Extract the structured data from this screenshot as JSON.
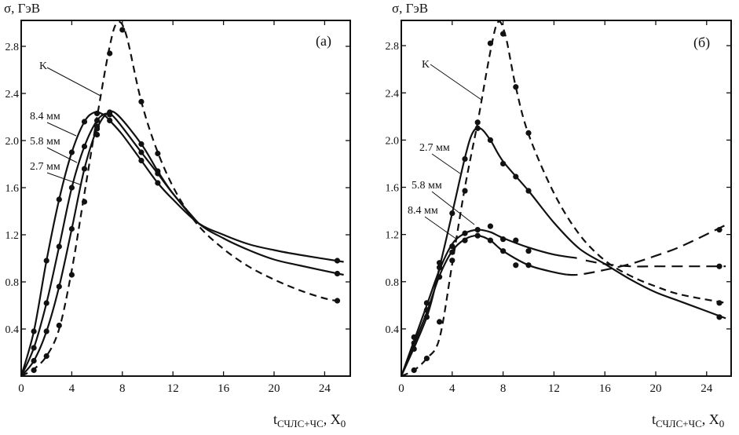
{
  "chart_data": [
    {
      "type": "line",
      "panel_label": "(а)",
      "ylabel": "σ, ГэВ",
      "xlabel": {
        "main": "t",
        "sub": "СЧЛС+ЧС",
        "rest": ", X",
        "rest_sub": "0"
      },
      "xlim": [
        0,
        26
      ],
      "ylim": [
        0,
        3.02
      ],
      "xticks": [
        0,
        4,
        8,
        12,
        16,
        20,
        24
      ],
      "xtick_labels": [
        "0",
        "4",
        "8",
        "12",
        "16",
        "20",
        "24"
      ],
      "yticks": [
        0.4,
        0.8,
        1.2,
        1.6,
        2.0,
        2.4,
        2.8
      ],
      "ytick_labels": [
        "0.4",
        "0.8",
        "1.2",
        "1.6",
        "2.0",
        "2.4",
        "2.8"
      ],
      "series": [
        {
          "name": "K",
          "style": "dashed",
          "points": [
            [
              1,
              0.05
            ],
            [
              2,
              0.17
            ],
            [
              3,
              0.43
            ],
            [
              4,
              0.86
            ],
            [
              5,
              1.48
            ],
            [
              6,
              2.05
            ],
            [
              6,
              2.12
            ],
            [
              7,
              2.74
            ],
            [
              8,
              2.94
            ],
            [
              9.5,
              2.33
            ],
            [
              10.8,
              1.89
            ],
            [
              25,
              0.64
            ]
          ],
          "curve": [
            [
              0,
              0
            ],
            [
              1,
              0.06
            ],
            [
              2,
              0.17
            ],
            [
              3,
              0.4
            ],
            [
              4,
              0.9
            ],
            [
              5,
              1.55
            ],
            [
              6,
              2.2
            ],
            [
              7,
              2.8
            ],
            [
              7.6,
              3.0
            ],
            [
              8.3,
              2.9
            ],
            [
              9.5,
              2.33
            ],
            [
              10.8,
              1.9
            ],
            [
              12.3,
              1.55
            ],
            [
              14,
              1.28
            ],
            [
              16,
              1.08
            ],
            [
              18,
              0.93
            ],
            [
              20,
              0.82
            ],
            [
              22,
              0.73
            ],
            [
              24,
              0.66
            ],
            [
              25.5,
              0.63
            ]
          ]
        },
        {
          "name": "8.4 мм",
          "style": "solid",
          "points": [
            [
              1,
              0.38
            ],
            [
              2,
              0.98
            ],
            [
              3,
              1.5
            ],
            [
              4,
              1.9
            ],
            [
              5,
              2.16
            ],
            [
              6,
              2.23
            ],
            [
              7,
              2.17
            ],
            [
              9.5,
              1.83
            ],
            [
              10.8,
              1.64
            ],
            [
              25,
              0.98
            ]
          ],
          "curve": [
            [
              0,
              0
            ],
            [
              1,
              0.38
            ],
            [
              2,
              0.98
            ],
            [
              3,
              1.5
            ],
            [
              4,
              1.9
            ],
            [
              5,
              2.16
            ],
            [
              5.8,
              2.24
            ],
            [
              6.5,
              2.22
            ],
            [
              7,
              2.17
            ],
            [
              8,
              2.05
            ],
            [
              9.5,
              1.83
            ],
            [
              10.8,
              1.64
            ],
            [
              12,
              1.5
            ],
            [
              14,
              1.3
            ],
            [
              16,
              1.2
            ],
            [
              18,
              1.12
            ],
            [
              20,
              1.07
            ],
            [
              22,
              1.03
            ],
            [
              25.5,
              0.97
            ]
          ]
        },
        {
          "name": "5.8 мм",
          "style": "solid",
          "points": [
            [
              1,
              0.24
            ],
            [
              2,
              0.62
            ],
            [
              3,
              1.1
            ],
            [
              4,
              1.6
            ],
            [
              5,
              1.95
            ],
            [
              6,
              2.17
            ],
            [
              7,
              2.22
            ],
            [
              9.5,
              1.9
            ],
            [
              10.8,
              1.72
            ],
            [
              25,
              0.87
            ]
          ],
          "curve": [
            [
              0,
              0
            ],
            [
              1,
              0.24
            ],
            [
              2,
              0.62
            ],
            [
              3,
              1.1
            ],
            [
              4,
              1.6
            ],
            [
              5,
              1.95
            ],
            [
              6,
              2.17
            ],
            [
              6.8,
              2.23
            ],
            [
              7.5,
              2.18
            ],
            [
              9.5,
              1.9
            ],
            [
              10.8,
              1.72
            ],
            [
              12,
              1.55
            ],
            [
              14,
              1.3
            ],
            [
              16,
              1.17
            ],
            [
              18,
              1.07
            ],
            [
              20,
              0.99
            ],
            [
              22,
              0.94
            ],
            [
              25.5,
              0.86
            ]
          ]
        },
        {
          "name": "2.7 мм",
          "style": "solid",
          "points": [
            [
              1,
              0.13
            ],
            [
              2,
              0.38
            ],
            [
              3,
              0.76
            ],
            [
              4,
              1.25
            ],
            [
              5,
              1.76
            ],
            [
              6,
              2.1
            ],
            [
              7,
              2.24
            ],
            [
              9.5,
              1.97
            ],
            [
              10.8,
              1.74
            ]
          ],
          "curve": [
            [
              0,
              0
            ],
            [
              1,
              0.13
            ],
            [
              2,
              0.38
            ],
            [
              3,
              0.76
            ],
            [
              4,
              1.25
            ],
            [
              5,
              1.76
            ],
            [
              6,
              2.1
            ],
            [
              6.8,
              2.23
            ],
            [
              7.6,
              2.22
            ],
            [
              9.5,
              1.97
            ],
            [
              10.8,
              1.74
            ],
            [
              12,
              1.55
            ],
            [
              14,
              1.3
            ]
          ]
        }
      ],
      "annotations": [
        "K",
        "8.4 мм",
        "5.8 мм",
        "2.7 мм"
      ]
    },
    {
      "type": "line",
      "panel_label": "(б)",
      "ylabel": "σ, ГэВ",
      "xlabel": {
        "main": "t",
        "sub": "СЧЛС+ЧС",
        "rest": ", X",
        "rest_sub": "0"
      },
      "xlim": [
        0,
        26
      ],
      "ylim": [
        0,
        3.02
      ],
      "xticks": [
        0,
        4,
        8,
        12,
        16,
        20,
        24
      ],
      "xtick_labels": [
        "0",
        "4",
        "8",
        "12",
        "16",
        "20",
        "24"
      ],
      "yticks": [
        0.4,
        0.8,
        1.2,
        1.6,
        2.0,
        2.4,
        2.8
      ],
      "ytick_labels": [
        "0.4",
        "0.8",
        "1.2",
        "1.6",
        "2.0",
        "2.4",
        "2.8"
      ],
      "series": [
        {
          "name": "K",
          "style": "dashed",
          "points": [
            [
              1,
              0.05
            ],
            [
              2,
              0.15
            ],
            [
              3,
              0.46
            ],
            [
              4,
              0.98
            ],
            [
              5,
              1.57
            ],
            [
              6,
              2.1
            ],
            [
              7,
              2.82
            ],
            [
              8,
              2.9
            ],
            [
              9,
              2.45
            ],
            [
              10,
              2.06
            ],
            [
              25,
              0.62
            ]
          ],
          "curve": [
            [
              0,
              0
            ],
            [
              1,
              0.05
            ],
            [
              2,
              0.15
            ],
            [
              3,
              0.32
            ],
            [
              4,
              0.95
            ],
            [
              5,
              1.6
            ],
            [
              6,
              2.15
            ],
            [
              7,
              2.75
            ],
            [
              7.6,
              3.0
            ],
            [
              8.2,
              2.88
            ],
            [
              9,
              2.45
            ],
            [
              10,
              2.05
            ],
            [
              12,
              1.55
            ],
            [
              14,
              1.2
            ],
            [
              16,
              0.98
            ],
            [
              18,
              0.85
            ],
            [
              20,
              0.76
            ],
            [
              22,
              0.69
            ],
            [
              25.5,
              0.62
            ]
          ]
        },
        {
          "name": "2.7 мм",
          "style": "solid",
          "points": [
            [
              1,
              0.23
            ],
            [
              2,
              0.5
            ],
            [
              3,
              0.92
            ],
            [
              4,
              1.38
            ],
            [
              5,
              1.84
            ],
            [
              6,
              2.15
            ],
            [
              7,
              2.0
            ],
            [
              8,
              1.8
            ],
            [
              9,
              1.69
            ],
            [
              10,
              1.57
            ],
            [
              25,
              0.5
            ]
          ],
          "curve": [
            [
              0,
              0
            ],
            [
              2,
              0.5
            ],
            [
              3,
              0.92
            ],
            [
              4,
              1.38
            ],
            [
              5,
              1.85
            ],
            [
              5.6,
              2.06
            ],
            [
              6.2,
              2.1
            ],
            [
              7,
              2.0
            ],
            [
              8,
              1.82
            ],
            [
              10,
              1.57
            ],
            [
              12,
              1.3
            ],
            [
              14,
              1.08
            ],
            [
              16,
              0.95
            ],
            [
              18,
              0.82
            ],
            [
              20,
              0.71
            ],
            [
              22,
              0.63
            ],
            [
              25.5,
              0.49
            ]
          ]
        },
        {
          "name": "5.8 мм",
          "style": "solid",
          "points": [
            [
              1,
              0.33
            ],
            [
              2,
              0.62
            ],
            [
              3,
              0.96
            ],
            [
              4,
              1.1
            ],
            [
              5,
              1.21
            ],
            [
              6,
              1.24
            ],
            [
              7,
              1.27
            ],
            [
              8,
              1.16
            ],
            [
              9,
              1.15
            ],
            [
              10,
              1.06
            ],
            [
              25,
              0.93
            ]
          ],
          "curve": [
            [
              0,
              0
            ],
            [
              1,
              0.3
            ],
            [
              2,
              0.6
            ],
            [
              3,
              0.9
            ],
            [
              4,
              1.12
            ],
            [
              5,
              1.21
            ],
            [
              6,
              1.24
            ],
            [
              7,
              1.22
            ],
            [
              8,
              1.17
            ],
            [
              10,
              1.09
            ],
            [
              12,
              1.03
            ],
            [
              13.8,
              1.0
            ]
          ],
          "dashed_tail": [
            [
              14.5,
              0.98
            ],
            [
              16,
              0.95
            ],
            [
              18,
              0.93
            ],
            [
              20,
              0.93
            ],
            [
              25.5,
              0.93
            ]
          ]
        },
        {
          "name": "8.4 мм",
          "style": "solid",
          "points": [
            [
              1,
              0.28
            ],
            [
              2,
              0.56
            ],
            [
              3,
              0.84
            ],
            [
              4,
              1.05
            ],
            [
              5,
              1.15
            ],
            [
              6,
              1.19
            ],
            [
              7,
              1.15
            ],
            [
              8,
              1.06
            ],
            [
              9,
              0.94
            ],
            [
              10,
              0.94
            ],
            [
              25,
              1.24
            ]
          ],
          "curve": [
            [
              0,
              0
            ],
            [
              1,
              0.27
            ],
            [
              2,
              0.54
            ],
            [
              3,
              0.85
            ],
            [
              4,
              1.06
            ],
            [
              5,
              1.16
            ],
            [
              6,
              1.19
            ],
            [
              7,
              1.15
            ],
            [
              8,
              1.06
            ],
            [
              10,
              0.94
            ],
            [
              12,
              0.88
            ],
            [
              13,
              0.86
            ]
          ],
          "dashed_tail": [
            [
              13,
              0.86
            ],
            [
              14,
              0.86
            ],
            [
              16,
              0.9
            ],
            [
              18,
              0.95
            ],
            [
              20,
              1.02
            ],
            [
              22,
              1.1
            ],
            [
              25.5,
              1.28
            ]
          ]
        }
      ],
      "annotations": [
        "K",
        "2.7 мм",
        "5.8 мм",
        "8.4 мм"
      ]
    }
  ]
}
